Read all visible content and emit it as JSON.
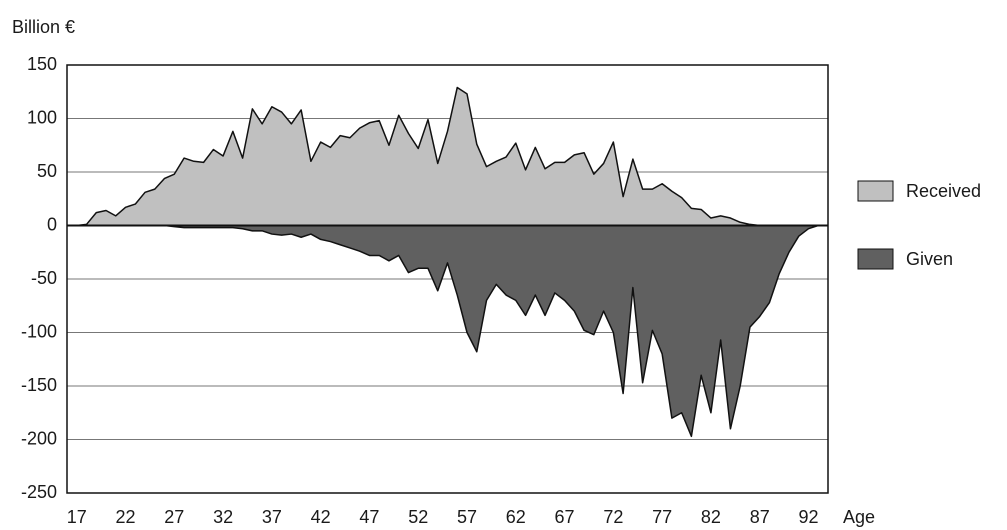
{
  "chart_data": {
    "type": "area",
    "y_label": "Billion €",
    "x_label": "Age",
    "x": [
      17,
      18,
      19,
      20,
      21,
      22,
      23,
      24,
      25,
      26,
      27,
      28,
      29,
      30,
      31,
      32,
      33,
      34,
      35,
      36,
      37,
      38,
      39,
      40,
      41,
      42,
      43,
      44,
      45,
      46,
      47,
      48,
      49,
      50,
      51,
      52,
      53,
      54,
      55,
      56,
      57,
      58,
      59,
      60,
      61,
      62,
      63,
      64,
      65,
      66,
      67,
      68,
      69,
      70,
      71,
      72,
      73,
      74,
      75,
      76,
      77,
      78,
      79,
      80,
      81,
      82,
      83,
      84,
      85,
      86,
      87,
      88,
      89,
      90,
      91,
      92,
      93
    ],
    "series": [
      {
        "name": "Received",
        "color": "#c0c0c0",
        "values": [
          0,
          1,
          12,
          14,
          9,
          17,
          20,
          31,
          34,
          44,
          48,
          63,
          60,
          59,
          71,
          65,
          88,
          63,
          109,
          95,
          111,
          106,
          95,
          108,
          60,
          78,
          73,
          84,
          82,
          91,
          96,
          98,
          75,
          103,
          86,
          72,
          99,
          58,
          88,
          129,
          123,
          76,
          55,
          60,
          64,
          77,
          52,
          73,
          53,
          59,
          59,
          66,
          68,
          48,
          58,
          78,
          27,
          62,
          34,
          34,
          39,
          32,
          26,
          16,
          15,
          7,
          9,
          7,
          3,
          1,
          0,
          0,
          0,
          0,
          0,
          0,
          0
        ]
      },
      {
        "name": "Given",
        "color": "#606060",
        "values": [
          0,
          0,
          0,
          0,
          0,
          0,
          0,
          0,
          0,
          0,
          -1,
          -2,
          -2,
          -2,
          -2,
          -2,
          -2,
          -3,
          -5,
          -5,
          -8,
          -9,
          -8,
          -11,
          -8,
          -13,
          -15,
          -18,
          -21,
          -24,
          -28,
          -28,
          -33,
          -28,
          -44,
          -40,
          -40,
          -61,
          -35,
          -65,
          -100,
          -118,
          -70,
          -55,
          -65,
          -70,
          -84,
          -65,
          -84,
          -63,
          -70,
          -80,
          -98,
          -102,
          -80,
          -100,
          -157,
          -58,
          -147,
          -98,
          -120,
          -180,
          -175,
          -197,
          -140,
          -175,
          -107,
          -190,
          -150,
          -95,
          -85,
          -72,
          -45,
          -25,
          -10,
          -3,
          0
        ]
      }
    ],
    "xlim": [
      16,
      94
    ],
    "xticks": [
      17,
      22,
      27,
      32,
      37,
      42,
      47,
      52,
      57,
      62,
      67,
      72,
      77,
      82,
      87,
      92
    ],
    "ylim": [
      -250,
      150
    ],
    "yticks": [
      150,
      100,
      50,
      0,
      -50,
      -100,
      -150,
      -200,
      -250
    ],
    "grid": true,
    "legend": "right"
  }
}
